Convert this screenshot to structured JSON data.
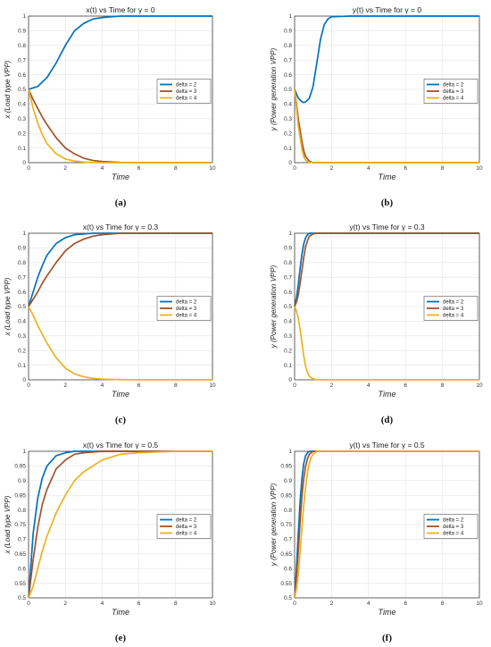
{
  "chart_data": [
    {
      "type": "line",
      "title": "x(t) vs Time for γ = 0",
      "xlabel": "Time",
      "ylabel": "x (Load type VPP)",
      "caption": "(a)",
      "xlim": [
        0,
        10
      ],
      "ylim": [
        0,
        1
      ],
      "xticks": [
        "0",
        "2",
        "4",
        "6",
        "8",
        "10"
      ],
      "yticks": [
        "0",
        "0.1",
        "0.2",
        "0.3",
        "0.4",
        "0.5",
        "0.6",
        "0.7",
        "0.8",
        "0.9",
        "1"
      ],
      "grid": true,
      "legend_position": "center-right",
      "x": [
        0,
        0.25,
        0.5,
        0.75,
        1,
        1.5,
        2,
        2.5,
        3,
        3.5,
        4,
        5,
        6,
        8,
        10
      ],
      "series": [
        {
          "name": "delta = 2",
          "color": "#0072BD",
          "values": [
            0.5,
            0.51,
            0.52,
            0.55,
            0.58,
            0.68,
            0.8,
            0.9,
            0.95,
            0.98,
            0.99,
            1.0,
            1.0,
            1.0,
            1.0
          ]
        },
        {
          "name": "delta = 3",
          "color": "#A2522B",
          "values": [
            0.5,
            0.43,
            0.37,
            0.31,
            0.26,
            0.17,
            0.1,
            0.06,
            0.03,
            0.015,
            0.008,
            0.002,
            0.0,
            0.0,
            0.0
          ]
        },
        {
          "name": "delta = 4",
          "color": "#EDB120",
          "values": [
            0.5,
            0.37,
            0.27,
            0.19,
            0.13,
            0.06,
            0.025,
            0.01,
            0.004,
            0.001,
            0.0,
            0.0,
            0.0,
            0.0,
            0.0
          ]
        }
      ]
    },
    {
      "type": "line",
      "title": "y(t) vs Time for γ = 0",
      "xlabel": "Time",
      "ylabel": "y (Power generation VPP)",
      "caption": "(b)",
      "xlim": [
        0,
        10
      ],
      "ylim": [
        0,
        1
      ],
      "xticks": [
        "0",
        "2",
        "4",
        "6",
        "8",
        "10"
      ],
      "yticks": [
        "0",
        "0.1",
        "0.2",
        "0.3",
        "0.4",
        "0.5",
        "0.6",
        "0.7",
        "0.8",
        "0.9",
        "1"
      ],
      "grid": true,
      "legend_position": "center-right",
      "x": [
        0,
        0.2,
        0.4,
        0.5,
        0.6,
        0.8,
        1,
        1.2,
        1.4,
        1.6,
        1.8,
        2,
        3,
        5,
        10
      ],
      "series": [
        {
          "name": "delta = 2",
          "color": "#0072BD",
          "values": [
            0.5,
            0.44,
            0.415,
            0.41,
            0.415,
            0.44,
            0.52,
            0.68,
            0.84,
            0.94,
            0.98,
            0.995,
            1.0,
            1.0,
            1.0
          ]
        },
        {
          "name": "delta = 3",
          "color": "#A2522B",
          "values": [
            0.5,
            0.3,
            0.14,
            0.08,
            0.04,
            0.01,
            0.0,
            0.0,
            0.0,
            0.0,
            0.0,
            0.0,
            0.0,
            0.0,
            0.0
          ]
        },
        {
          "name": "delta = 4",
          "color": "#EDB120",
          "values": [
            0.5,
            0.25,
            0.09,
            0.04,
            0.015,
            0.002,
            0.0,
            0.0,
            0.0,
            0.0,
            0.0,
            0.0,
            0.0,
            0.0,
            0.0
          ]
        }
      ]
    },
    {
      "type": "line",
      "title": "x(t) vs Time for γ = 0.3",
      "xlabel": "Time",
      "ylabel": "x (Load type VPP)",
      "caption": "(c)",
      "xlim": [
        0,
        10
      ],
      "ylim": [
        0,
        1
      ],
      "xticks": [
        "0",
        "2",
        "4",
        "6",
        "8",
        "10"
      ],
      "yticks": [
        "0",
        "0.1",
        "0.2",
        "0.3",
        "0.4",
        "0.5",
        "0.6",
        "0.7",
        "0.8",
        "0.9",
        "1"
      ],
      "grid": true,
      "legend_position": "center-right",
      "x": [
        0,
        0.25,
        0.5,
        0.75,
        1,
        1.5,
        2,
        2.5,
        3,
        3.5,
        4,
        5,
        6,
        8,
        10
      ],
      "series": [
        {
          "name": "delta = 2",
          "color": "#0072BD",
          "values": [
            0.5,
            0.6,
            0.7,
            0.78,
            0.85,
            0.93,
            0.97,
            0.99,
            0.995,
            1.0,
            1.0,
            1.0,
            1.0,
            1.0,
            1.0
          ]
        },
        {
          "name": "delta = 3",
          "color": "#A2522B",
          "values": [
            0.5,
            0.55,
            0.6,
            0.66,
            0.71,
            0.8,
            0.88,
            0.93,
            0.96,
            0.98,
            0.99,
            1.0,
            1.0,
            1.0,
            1.0
          ]
        },
        {
          "name": "delta = 4",
          "color": "#EDB120",
          "values": [
            0.5,
            0.44,
            0.37,
            0.31,
            0.25,
            0.15,
            0.08,
            0.04,
            0.02,
            0.01,
            0.005,
            0.001,
            0.0,
            0.0,
            0.0
          ]
        }
      ]
    },
    {
      "type": "line",
      "title": "y(t) vs Time for γ = 0.3",
      "xlabel": "Time",
      "ylabel": "y (Power generation VPP)",
      "caption": "(d)",
      "xlim": [
        0,
        10
      ],
      "ylim": [
        0,
        1
      ],
      "xticks": [
        "0",
        "2",
        "4",
        "6",
        "8",
        "10"
      ],
      "yticks": [
        "0",
        "0.1",
        "0.2",
        "0.3",
        "0.4",
        "0.5",
        "0.6",
        "0.7",
        "0.8",
        "0.9",
        "1"
      ],
      "grid": true,
      "legend_position": "center-right",
      "x": [
        0,
        0.1,
        0.2,
        0.3,
        0.4,
        0.5,
        0.6,
        0.7,
        0.8,
        1,
        1.2,
        1.5,
        2,
        5,
        10
      ],
      "series": [
        {
          "name": "delta = 2",
          "color": "#0072BD",
          "values": [
            0.5,
            0.56,
            0.65,
            0.76,
            0.86,
            0.93,
            0.97,
            0.99,
            1.0,
            1.0,
            1.0,
            1.0,
            1.0,
            1.0,
            1.0
          ]
        },
        {
          "name": "delta = 3",
          "color": "#A2522B",
          "values": [
            0.5,
            0.53,
            0.58,
            0.66,
            0.75,
            0.84,
            0.91,
            0.95,
            0.98,
            0.995,
            1.0,
            1.0,
            1.0,
            1.0,
            1.0
          ]
        },
        {
          "name": "delta = 4",
          "color": "#EDB120",
          "values": [
            0.5,
            0.47,
            0.42,
            0.34,
            0.25,
            0.16,
            0.09,
            0.05,
            0.025,
            0.006,
            0.002,
            0.0,
            0.0,
            0.0,
            0.0
          ]
        }
      ]
    },
    {
      "type": "line",
      "title": "x(t) vs Time for γ = 0.5",
      "xlabel": "Time",
      "ylabel": "x (Load type VPP)",
      "caption": "(e)",
      "xlim": [
        0,
        10
      ],
      "ylim": [
        0.5,
        1
      ],
      "xticks": [
        "0",
        "2",
        "4",
        "6",
        "8",
        "10"
      ],
      "yticks": [
        "0.5",
        "0.55",
        "0.6",
        "0.65",
        "0.7",
        "0.75",
        "0.8",
        "0.85",
        "0.9",
        "0.95",
        "1"
      ],
      "grid": true,
      "legend_position": "center-right",
      "x": [
        0,
        0.25,
        0.5,
        0.75,
        1,
        1.5,
        2,
        2.5,
        3,
        4,
        5,
        6,
        8,
        10
      ],
      "series": [
        {
          "name": "delta = 2",
          "color": "#0072BD",
          "values": [
            0.5,
            0.72,
            0.84,
            0.91,
            0.95,
            0.985,
            0.995,
            1.0,
            1.0,
            1.0,
            1.0,
            1.0,
            1.0,
            1.0
          ]
        },
        {
          "name": "delta = 3",
          "color": "#A2522B",
          "values": [
            0.5,
            0.63,
            0.74,
            0.82,
            0.87,
            0.94,
            0.97,
            0.99,
            0.995,
            1.0,
            1.0,
            1.0,
            1.0,
            1.0
          ]
        },
        {
          "name": "delta = 4",
          "color": "#EDB120",
          "values": [
            0.5,
            0.54,
            0.6,
            0.66,
            0.71,
            0.79,
            0.85,
            0.9,
            0.93,
            0.97,
            0.99,
            0.995,
            1.0,
            1.0
          ]
        }
      ]
    },
    {
      "type": "line",
      "title": "y(t) vs Time for γ = 0.5",
      "xlabel": "Time",
      "ylabel": "y (Power generation VPP)",
      "caption": "(f)",
      "xlim": [
        0,
        10
      ],
      "ylim": [
        0.5,
        1
      ],
      "xticks": [
        "0",
        "2",
        "4",
        "6",
        "8",
        "10"
      ],
      "yticks": [
        "0.5",
        "0.55",
        "0.6",
        "0.65",
        "0.7",
        "0.75",
        "0.8",
        "0.85",
        "0.9",
        "0.95",
        "1"
      ],
      "grid": true,
      "legend_position": "center-right",
      "x": [
        0,
        0.1,
        0.2,
        0.3,
        0.4,
        0.5,
        0.6,
        0.7,
        0.8,
        0.9,
        1,
        1.2,
        1.5,
        2,
        5,
        10
      ],
      "series": [
        {
          "name": "delta = 2",
          "color": "#0072BD",
          "values": [
            0.5,
            0.6,
            0.72,
            0.83,
            0.91,
            0.96,
            0.985,
            0.995,
            1.0,
            1.0,
            1.0,
            1.0,
            1.0,
            1.0,
            1.0,
            1.0
          ]
        },
        {
          "name": "delta = 3",
          "color": "#A2522B",
          "values": [
            0.5,
            0.57,
            0.66,
            0.76,
            0.85,
            0.91,
            0.95,
            0.975,
            0.99,
            0.995,
            1.0,
            1.0,
            1.0,
            1.0,
            1.0,
            1.0
          ]
        },
        {
          "name": "delta = 4",
          "color": "#EDB120",
          "values": [
            0.5,
            0.53,
            0.58,
            0.66,
            0.74,
            0.82,
            0.88,
            0.93,
            0.96,
            0.98,
            0.99,
            1.0,
            1.0,
            1.0,
            1.0,
            1.0
          ]
        }
      ]
    }
  ]
}
